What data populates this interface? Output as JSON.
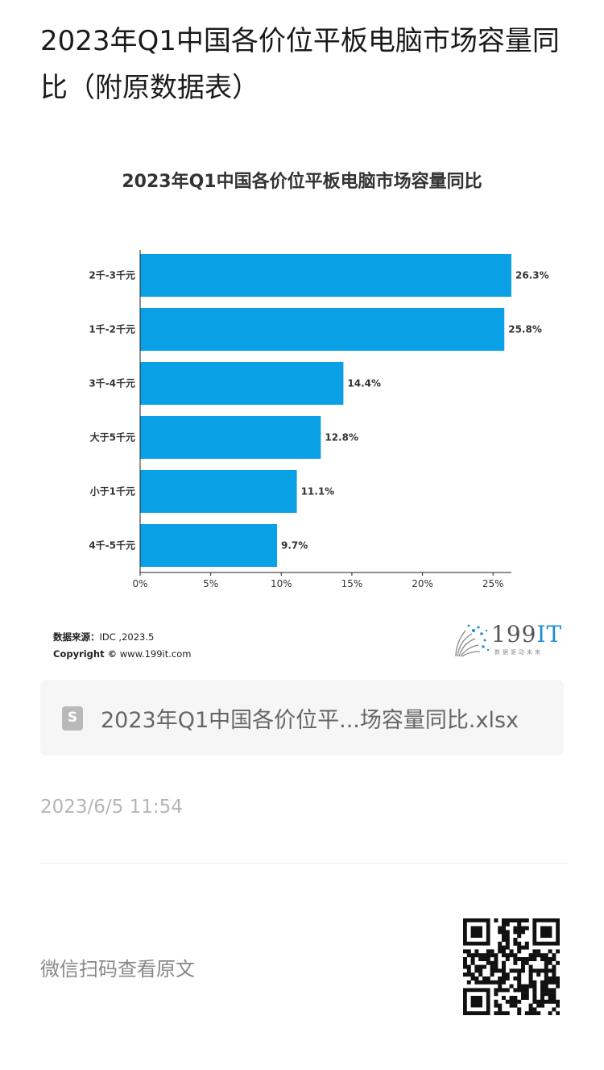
{
  "article": {
    "title": "2023年Q1中国各价位平板电脑市场容量同比（附原数据表）"
  },
  "chart_data": {
    "type": "bar",
    "orientation": "horizontal",
    "title": "2023年Q1中国各价位平板电脑市场容量同比",
    "categories": [
      "2千-3千元",
      "1千-2千元",
      "3千-4千元",
      "大于5千元",
      "小于1千元",
      "4千-5千元"
    ],
    "values": [
      26.3,
      25.8,
      14.4,
      12.8,
      11.1,
      9.7
    ],
    "value_labels": [
      "26.3%",
      "25.8%",
      "14.4%",
      "12.8%",
      "11.1%",
      "9.7%"
    ],
    "x_ticks": [
      "0%",
      "5%",
      "10%",
      "15%",
      "20%",
      "25%"
    ],
    "xlim": [
      0,
      26.3
    ],
    "xlabel": "",
    "ylabel": "",
    "grid": false,
    "bar_color": "#0aa0e6"
  },
  "source": {
    "label": "数据来源：",
    "value": "IDC ,2023.5",
    "copyright_label": "Copyright ©",
    "copyright_site": "www.199it.com"
  },
  "logo": {
    "number": "199",
    "suffix": "IT",
    "tagline": "数据驱动未来"
  },
  "attachment": {
    "icon": "spreadsheet-file-icon",
    "icon_letter": "S",
    "filename": "2023年Q1中国各价位平...场容量同比.xlsx"
  },
  "meta": {
    "timestamp": "2023/6/5 11:54"
  },
  "footer": {
    "qr_prompt": "微信扫码查看原文",
    "qr_icon": "qr-code-icon"
  }
}
